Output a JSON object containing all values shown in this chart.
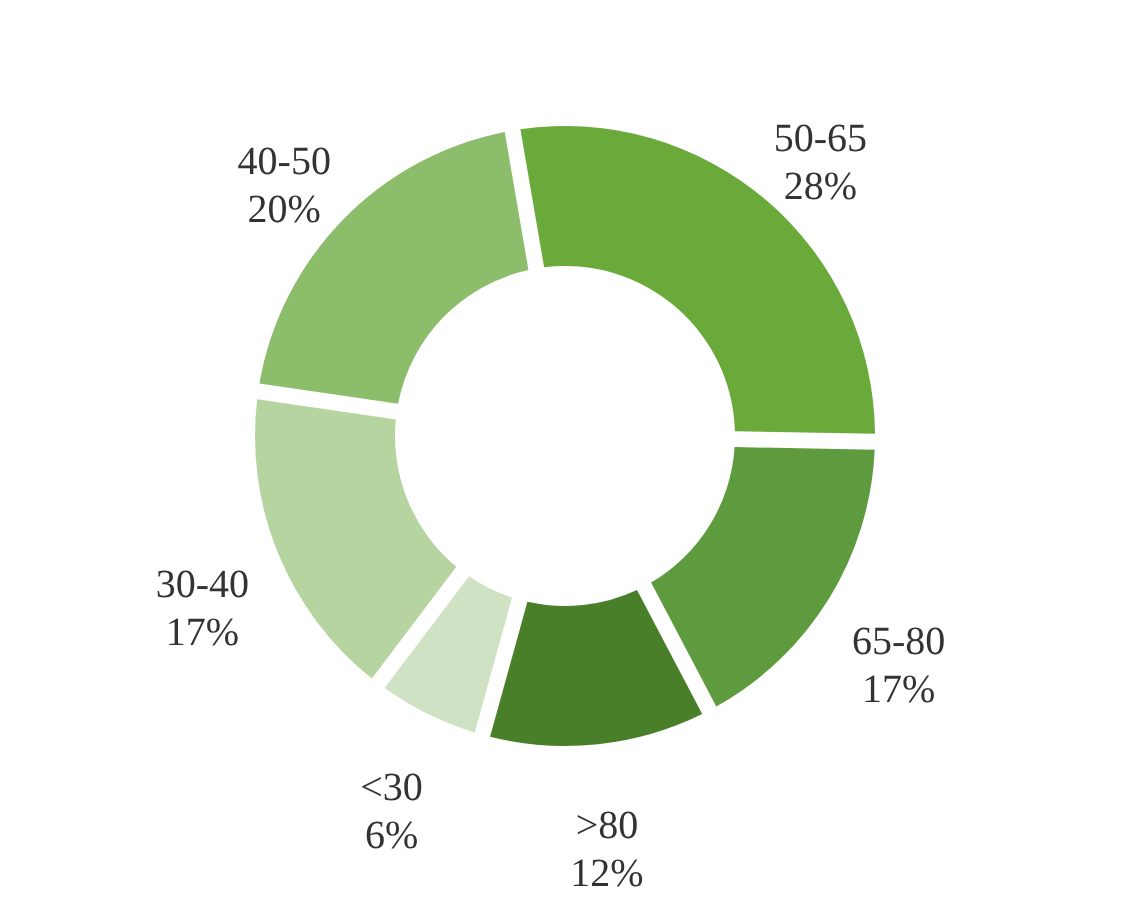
{
  "chart_data": {
    "type": "donut",
    "categories": [
      "50-65",
      "65-80",
      ">80",
      "<30",
      "30-40",
      "40-50"
    ],
    "values": [
      28,
      17,
      12,
      6,
      17,
      20
    ],
    "value_labels": [
      "28%",
      "17%",
      "12%",
      "6%",
      "17%",
      "20%"
    ],
    "colors": [
      "#6aaa3a",
      "#5e9a3e",
      "#4a7f2a",
      "#cfe3c4",
      "#b5d4a0",
      "#8bbd6a"
    ]
  }
}
